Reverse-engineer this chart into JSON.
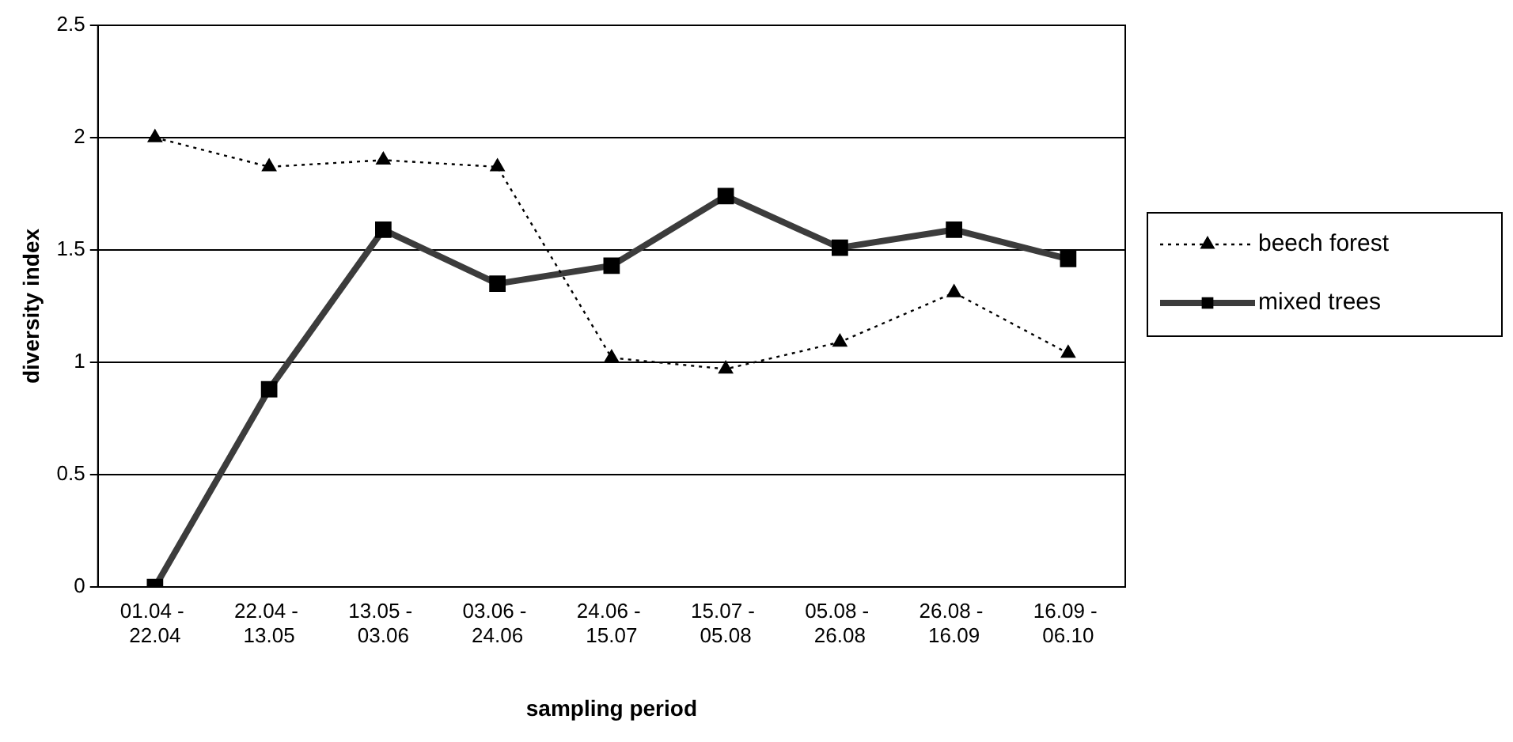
{
  "chart_data": {
    "type": "line",
    "xlabel": "sampling period",
    "ylabel": "diversity index",
    "categories": [
      "01.04 - 22.04",
      "22.04 - 13.05",
      "13.05 - 03.06",
      "03.06 - 24.06",
      "24.06 - 15.07",
      "15.07 - 05.08",
      "05.08 - 26.08",
      "26.08 - 16.09",
      "16.09 - 06.10"
    ],
    "series": [
      {
        "name": "beech forest",
        "color": "#000000",
        "values": [
          2.0,
          1.87,
          1.9,
          1.87,
          1.02,
          0.97,
          1.09,
          1.31,
          1.04
        ],
        "marker": "triangle",
        "line_style": "dotted"
      },
      {
        "name": "mixed trees",
        "color": "#3c3c3c",
        "values": [
          0,
          0.88,
          1.59,
          1.35,
          1.43,
          1.74,
          1.51,
          1.59,
          1.46
        ],
        "marker": "square",
        "line_style": "solid"
      }
    ],
    "ylim": [
      0,
      2.5
    ],
    "yticks": [
      0,
      0.5,
      1,
      1.5,
      2,
      2.5
    ],
    "grid": "y",
    "legend": "right"
  }
}
